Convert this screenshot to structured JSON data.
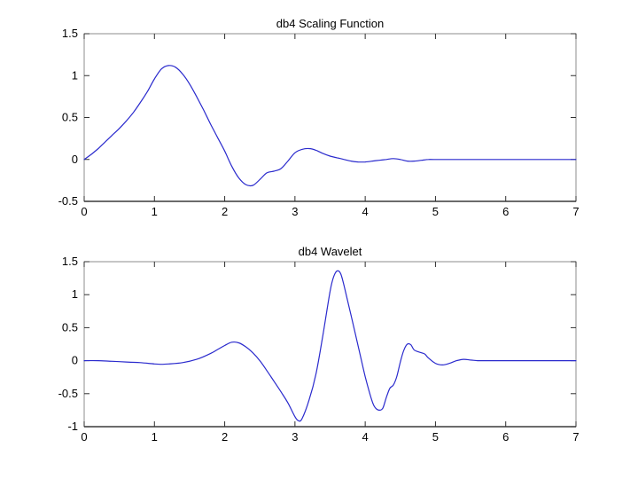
{
  "figure": {
    "background": "#ffffff"
  },
  "styles": {
    "curve_color": "#2a2acd",
    "curve_tail_color": "#9a9ad8",
    "axis_box_color": "#8c8c8c",
    "axis_bottom_color": "#3a3a3a",
    "tick_color": "#2f2f2f",
    "label_color": "#000000"
  },
  "chart_data": [
    {
      "type": "line",
      "name": "scaling-function",
      "title": "db4 Scaling Function",
      "xlabel": "",
      "ylabel": "",
      "legend": null,
      "grid": false,
      "xlim": [
        0,
        7
      ],
      "ylim": [
        -0.5,
        1.5
      ],
      "xticks": [
        0,
        1,
        2,
        3,
        4,
        5,
        6,
        7
      ],
      "xtick_labels": [
        "0",
        "1",
        "2",
        "3",
        "4",
        "5",
        "6",
        "7"
      ],
      "yticks": [
        1.5,
        1,
        0.5,
        0,
        -0.5
      ],
      "ytick_labels": [
        "1.5",
        "1",
        "0.5",
        "0",
        "-0.5"
      ],
      "x": [
        0,
        0.1,
        0.2,
        0.3,
        0.4,
        0.5,
        0.6,
        0.7,
        0.8,
        0.9,
        1,
        1.1,
        1.2,
        1.3,
        1.4,
        1.5,
        1.6,
        1.7,
        1.8,
        1.9,
        2,
        2.1,
        2.2,
        2.3,
        2.4,
        2.5,
        2.6,
        2.7,
        2.8,
        2.9,
        3,
        3.1,
        3.2,
        3.3,
        3.4,
        3.5,
        3.6,
        3.7,
        3.8,
        3.9,
        4,
        4.1,
        4.2,
        4.3,
        4.4,
        4.5,
        4.6,
        4.7,
        4.8,
        4.9,
        5,
        5.5,
        6,
        6.5,
        7
      ],
      "y": [
        0,
        0.06,
        0.13,
        0.21,
        0.29,
        0.37,
        0.46,
        0.56,
        0.68,
        0.81,
        0.96,
        1.08,
        1.12,
        1.1,
        1.02,
        0.9,
        0.75,
        0.59,
        0.42,
        0.26,
        0.1,
        -0.08,
        -0.22,
        -0.3,
        -0.31,
        -0.24,
        -0.16,
        -0.14,
        -0.11,
        -0.02,
        0.08,
        0.12,
        0.13,
        0.11,
        0.07,
        0.04,
        0.02,
        0,
        -0.02,
        -0.03,
        -0.03,
        -0.02,
        -0.01,
        0,
        0.01,
        0,
        -0.02,
        -0.02,
        -0.01,
        0,
        0,
        0,
        0,
        0,
        0
      ]
    },
    {
      "type": "line",
      "name": "wavelet",
      "title": "db4 Wavelet",
      "xlabel": "",
      "ylabel": "",
      "legend": null,
      "grid": false,
      "xlim": [
        0,
        7
      ],
      "ylim": [
        -1,
        1.5
      ],
      "xticks": [
        0,
        1,
        2,
        3,
        4,
        5,
        6,
        7
      ],
      "xtick_labels": [
        "0",
        "1",
        "2",
        "3",
        "4",
        "5",
        "6",
        "7"
      ],
      "yticks": [
        1.5,
        1,
        0.5,
        0,
        -0.5,
        -1
      ],
      "ytick_labels": [
        "1.5",
        "1",
        "0.5",
        "0",
        "-0.5",
        "-1"
      ],
      "x": [
        0,
        0.2,
        0.4,
        0.6,
        0.8,
        1,
        1.1,
        1.2,
        1.4,
        1.6,
        1.8,
        1.9,
        2,
        2.1,
        2.2,
        2.3,
        2.4,
        2.5,
        2.6,
        2.7,
        2.8,
        2.9,
        3,
        3.05,
        3.1,
        3.2,
        3.3,
        3.4,
        3.5,
        3.55,
        3.6,
        3.65,
        3.7,
        3.8,
        3.9,
        4,
        4.1,
        4.15,
        4.2,
        4.25,
        4.3,
        4.35,
        4.4,
        4.45,
        4.5,
        4.55,
        4.6,
        4.65,
        4.7,
        4.8,
        4.85,
        4.9,
        5,
        5.1,
        5.2,
        5.3,
        5.4,
        5.5,
        5.6,
        5.7,
        6,
        6.5,
        7
      ],
      "y": [
        0,
        0,
        -0.01,
        -0.02,
        -0.03,
        -0.05,
        -0.055,
        -0.05,
        -0.03,
        0.02,
        0.11,
        0.17,
        0.23,
        0.28,
        0.27,
        0.21,
        0.12,
        0,
        -0.15,
        -0.31,
        -0.47,
        -0.64,
        -0.85,
        -0.91,
        -0.88,
        -0.6,
        -0.2,
        0.4,
        1.05,
        1.27,
        1.36,
        1.32,
        1.13,
        0.68,
        0.22,
        -0.24,
        -0.62,
        -0.72,
        -0.75,
        -0.72,
        -0.56,
        -0.42,
        -0.37,
        -0.24,
        -0.02,
        0.16,
        0.25,
        0.24,
        0.16,
        0.12,
        0.1,
        0.04,
        -0.04,
        -0.065,
        -0.04,
        0,
        0.02,
        0.01,
        0,
        0,
        0,
        0,
        0
      ]
    }
  ]
}
